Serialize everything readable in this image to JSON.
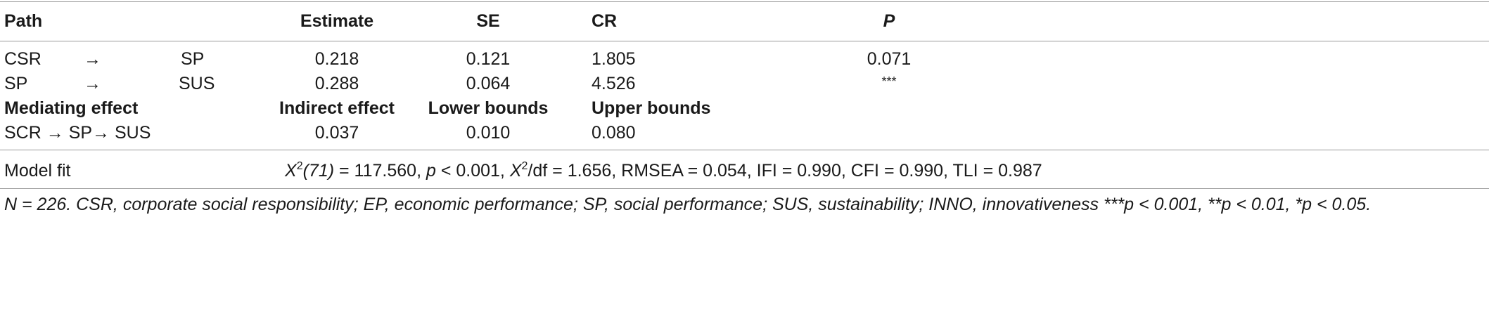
{
  "header": {
    "path": "Path",
    "estimate": "Estimate",
    "se": "SE",
    "cr": "CR",
    "p": "P"
  },
  "rows": [
    {
      "from": "CSR",
      "arrow": "→",
      "to": "SP",
      "estimate": "0.218",
      "se": "0.121",
      "cr": "1.805",
      "p": "0.071"
    },
    {
      "from": "SP",
      "arrow": "→",
      "to": "SUS",
      "estimate": "0.288",
      "se": "0.064",
      "cr": "4.526",
      "p": "***"
    }
  ],
  "mediating_header": {
    "label": "Mediating effect",
    "indirect": "Indirect effect",
    "lower": "Lower bounds",
    "upper": "Upper bounds"
  },
  "mediating_row": {
    "path": "SCR → SP→ SUS",
    "indirect": "0.037",
    "lower": "0.010",
    "upper": "0.080"
  },
  "model_fit": {
    "label": "Model fit",
    "x1": "X",
    "sup1": "2",
    "x1_rest": "(71)",
    "part1": " = 117.560, ",
    "p_var": "p",
    "part2": " < 0.001, ",
    "x2": "X",
    "sup2": "2",
    "part3": "/df = 1.656, RMSEA = 0.054, IFI = 0.990, CFI = 0.990, TLI = 0.987"
  },
  "footnote": "N = 226. CSR, corporate social responsibility; EP, economic performance; SP, social performance; SUS, sustainability; INNO, innovativeness ***p < 0.001, **p < 0.01, *p < 0.05."
}
